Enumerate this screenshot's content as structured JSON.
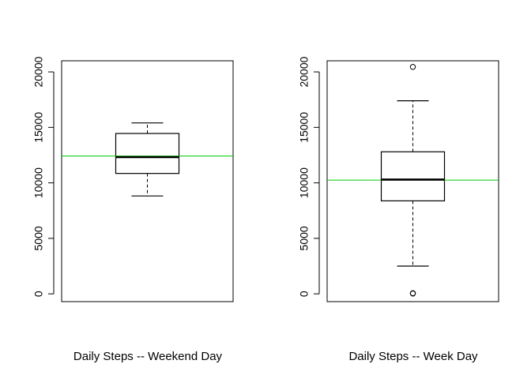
{
  "chart_data": [
    {
      "type": "box",
      "xlabel": "Daily Steps -- Weekend Day",
      "ylim": [
        -700,
        21000
      ],
      "yticks": [
        0,
        5000,
        10000,
        15000,
        20000
      ],
      "ytick_labels": [
        "0",
        "5000",
        "10000",
        "15000",
        "20000"
      ],
      "box": {
        "whisker_low": 8820,
        "q1": 10850,
        "median": 12320,
        "q3": 14450,
        "whisker_high": 15400,
        "outliers": []
      },
      "mean_line": {
        "value": 12420,
        "color": "#00cc00"
      }
    },
    {
      "type": "box",
      "xlabel": "Daily Steps -- Week Day",
      "ylim": [
        -700,
        21000
      ],
      "yticks": [
        0,
        5000,
        10000,
        15000,
        20000
      ],
      "ytick_labels": [
        "0",
        "5000",
        "10000",
        "15000",
        "20000"
      ],
      "box": {
        "whisker_low": 2500,
        "q1": 8380,
        "median": 10300,
        "q3": 12800,
        "whisker_high": 17400,
        "outliers": [
          20450,
          30,
          60
        ]
      },
      "mean_line": {
        "value": 10250,
        "color": "#00cc00"
      }
    }
  ]
}
